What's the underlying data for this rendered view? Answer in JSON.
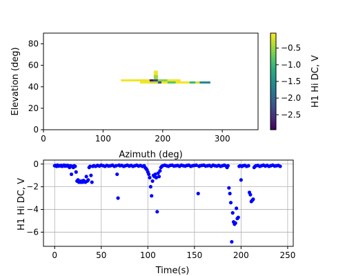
{
  "chart_data": [
    {
      "type": "heatmap",
      "xlabel": "Azimuth (deg)",
      "ylabel": "Elevation (deg)",
      "xlim": [
        0,
        360
      ],
      "ylim": [
        0,
        90
      ],
      "xticks": [
        0,
        100,
        200,
        300
      ],
      "yticks": [
        0,
        20,
        40,
        60,
        80
      ],
      "colorbar": {
        "label": "H1 Hi DC, V",
        "range": [
          -2.95,
          -0.05
        ],
        "ticks": [
          -0.5,
          -1.0,
          -1.5,
          -2.0,
          -2.5
        ],
        "tick_labels": [
          "−0.5",
          "−1.0",
          "−1.5",
          "−2.0",
          "−2.5"
        ],
        "colormap": "viridis"
      },
      "cells": [
        {
          "az": [
            130,
            160
          ],
          "el": [
            45,
            47
          ],
          "v": -0.1
        },
        {
          "az": [
            160,
            178
          ],
          "el": [
            45,
            47
          ],
          "v": -0.15
        },
        {
          "az": [
            178,
            185
          ],
          "el": [
            45,
            47
          ],
          "v": -2.75
        },
        {
          "az": [
            185,
            192
          ],
          "el": [
            45,
            47
          ],
          "v": -2.4
        },
        {
          "az": [
            192,
            208
          ],
          "el": [
            45,
            47
          ],
          "v": -0.6
        },
        {
          "az": [
            208,
            230
          ],
          "el": [
            45,
            47
          ],
          "v": -0.1
        },
        {
          "az": [
            185,
            192
          ],
          "el": [
            51,
            55
          ],
          "v": -0.1
        },
        {
          "az": [
            185,
            192
          ],
          "el": [
            47,
            51
          ],
          "v": -0.5
        },
        {
          "az": [
            162,
            178
          ],
          "el": [
            43,
            45
          ],
          "v": -0.1
        },
        {
          "az": [
            178,
            192
          ],
          "el": [
            43,
            45
          ],
          "v": -0.3
        },
        {
          "az": [
            192,
            198
          ],
          "el": [
            43,
            45
          ],
          "v": -2.2
        },
        {
          "az": [
            198,
            208
          ],
          "el": [
            43,
            45
          ],
          "v": -0.1
        },
        {
          "az": [
            208,
            222
          ],
          "el": [
            43,
            45
          ],
          "v": -0.8
        },
        {
          "az": [
            222,
            245
          ],
          "el": [
            43,
            45
          ],
          "v": -0.1
        },
        {
          "az": [
            245,
            255
          ],
          "el": [
            43,
            45
          ],
          "v": -1.0
        },
        {
          "az": [
            255,
            262
          ],
          "el": [
            43,
            45
          ],
          "v": -0.2
        },
        {
          "az": [
            262,
            280
          ],
          "el": [
            43,
            45
          ],
          "v": -1.6
        }
      ]
    },
    {
      "type": "scatter",
      "xlabel": "Time(s)",
      "ylabel": "H1 Hi DC, V",
      "xlim": [
        -12,
        256
      ],
      "ylim": [
        -7.25,
        0.35
      ],
      "xticks": [
        0,
        50,
        100,
        150,
        200,
        250
      ],
      "yticks": [
        0,
        -2,
        -4,
        -6
      ],
      "ytick_labels": [
        "0",
        "−2",
        "−4",
        "−6"
      ],
      "grid": true,
      "color": "#0000ff",
      "points": [
        [
          0,
          -0.15
        ],
        [
          1,
          -0.12
        ],
        [
          2,
          -0.2
        ],
        [
          3,
          -0.1
        ],
        [
          4,
          -0.18
        ],
        [
          5,
          -0.14
        ],
        [
          6,
          -0.16
        ],
        [
          7,
          -0.12
        ],
        [
          8,
          -0.2
        ],
        [
          9,
          -0.15
        ],
        [
          10,
          -0.1
        ],
        [
          11,
          -0.18
        ],
        [
          12,
          -0.13
        ],
        [
          13,
          -0.17
        ],
        [
          14,
          -0.12
        ],
        [
          15,
          -0.2
        ],
        [
          16,
          -0.3
        ],
        [
          17,
          -0.15
        ],
        [
          18,
          -0.9
        ],
        [
          19,
          -0.2
        ],
        [
          20,
          -0.3
        ],
        [
          21,
          -0.15
        ],
        [
          22,
          -0.2
        ],
        [
          23,
          -0.7
        ],
        [
          24,
          -1.5
        ],
        [
          25,
          -1.4
        ],
        [
          26,
          -1.6
        ],
        [
          27,
          -1.5
        ],
        [
          28,
          -1.6
        ],
        [
          29,
          -1.5
        ],
        [
          30,
          -1.6
        ],
        [
          31,
          -1.45
        ],
        [
          32,
          -1.55
        ],
        [
          33,
          -1.6
        ],
        [
          34,
          -1.1
        ],
        [
          35,
          -1.5
        ],
        [
          36,
          -1.4
        ],
        [
          37,
          -0.3
        ],
        [
          38,
          -0.2
        ],
        [
          39,
          -1.0
        ],
        [
          40,
          -1.6
        ],
        [
          41,
          -0.2
        ],
        [
          42,
          -0.15
        ],
        [
          44,
          -0.2
        ],
        [
          46,
          -0.12
        ],
        [
          48,
          -0.18
        ],
        [
          50,
          -0.1
        ],
        [
          52,
          -0.15
        ],
        [
          54,
          -0.2
        ],
        [
          56,
          -0.12
        ],
        [
          58,
          -0.18
        ],
        [
          60,
          -0.15
        ],
        [
          62,
          -0.1
        ],
        [
          64,
          -0.2
        ],
        [
          66,
          -0.15
        ],
        [
          67,
          -0.9
        ],
        [
          68,
          -3.0
        ],
        [
          69,
          -0.1
        ],
        [
          70,
          -0.15
        ],
        [
          72,
          -0.12
        ],
        [
          74,
          -0.2
        ],
        [
          76,
          -0.15
        ],
        [
          78,
          -0.1
        ],
        [
          80,
          -0.18
        ],
        [
          82,
          -0.12
        ],
        [
          84,
          -0.2
        ],
        [
          86,
          -0.15
        ],
        [
          88,
          -0.1
        ],
        [
          90,
          -0.18
        ],
        [
          92,
          -0.13
        ],
        [
          94,
          -0.2
        ],
        [
          96,
          -0.15
        ],
        [
          97,
          -0.3
        ],
        [
          98,
          -0.4
        ],
        [
          99,
          -0.5
        ],
        [
          100,
          -0.7
        ],
        [
          101,
          -0.9
        ],
        [
          102,
          -1.2
        ],
        [
          103,
          -2.0
        ],
        [
          104,
          -2.8
        ],
        [
          105,
          -1.5
        ],
        [
          106,
          -1.0
        ],
        [
          107,
          -1.1
        ],
        [
          108,
          -0.9
        ],
        [
          109,
          -1.2
        ],
        [
          110,
          -4.2
        ],
        [
          111,
          -0.8
        ],
        [
          112,
          -1.1
        ],
        [
          113,
          -0.6
        ],
        [
          114,
          -0.3
        ],
        [
          115,
          -0.2
        ],
        [
          116,
          -0.15
        ],
        [
          118,
          -0.1
        ],
        [
          120,
          -0.15
        ],
        [
          122,
          -0.2
        ],
        [
          124,
          -0.12
        ],
        [
          126,
          -0.1
        ],
        [
          128,
          -0.18
        ],
        [
          130,
          -0.15
        ],
        [
          132,
          -0.12
        ],
        [
          134,
          -0.2
        ],
        [
          136,
          -0.1
        ],
        [
          138,
          -0.15
        ],
        [
          140,
          -0.18
        ],
        [
          142,
          -0.12
        ],
        [
          144,
          -0.1
        ],
        [
          146,
          -0.2
        ],
        [
          148,
          -0.15
        ],
        [
          150,
          -0.12
        ],
        [
          152,
          -0.1
        ],
        [
          154,
          -2.6
        ],
        [
          155,
          -0.2
        ],
        [
          156,
          -0.15
        ],
        [
          158,
          -0.12
        ],
        [
          160,
          -0.1
        ],
        [
          162,
          -0.18
        ],
        [
          164,
          -0.15
        ],
        [
          166,
          -0.12
        ],
        [
          168,
          -0.2
        ],
        [
          170,
          -0.1
        ],
        [
          172,
          -0.15
        ],
        [
          174,
          -0.18
        ],
        [
          176,
          -0.12
        ],
        [
          178,
          -0.2
        ],
        [
          180,
          -0.15
        ],
        [
          182,
          -0.1
        ],
        [
          184,
          -0.18
        ],
        [
          185,
          -0.3
        ],
        [
          186,
          -0.15
        ],
        [
          187,
          -2.1
        ],
        [
          188,
          -2.6
        ],
        [
          189,
          -3.4
        ],
        [
          190,
          -6.85
        ],
        [
          191,
          -4.3
        ],
        [
          192,
          -5.1
        ],
        [
          193,
          -5.3
        ],
        [
          194,
          -5.2
        ],
        [
          195,
          -3.9
        ],
        [
          196,
          -4.8
        ],
        [
          197,
          -4.7
        ],
        [
          198,
          -0.2
        ],
        [
          199,
          -0.15
        ],
        [
          200,
          -1.4
        ],
        [
          201,
          -0.2
        ],
        [
          202,
          -0.15
        ],
        [
          204,
          -0.12
        ],
        [
          206,
          -0.2
        ],
        [
          208,
          -0.15
        ],
        [
          209,
          -2.5
        ],
        [
          210,
          -2.7
        ],
        [
          211,
          -3.3
        ],
        [
          212,
          -3.2
        ],
        [
          213,
          -3.1
        ],
        [
          214,
          -0.3
        ],
        [
          215,
          -0.2
        ],
        [
          216,
          -0.15
        ],
        [
          218,
          -0.12
        ],
        [
          220,
          -0.2
        ],
        [
          222,
          -0.15
        ],
        [
          224,
          -0.1
        ],
        [
          226,
          -0.18
        ],
        [
          228,
          -0.12
        ],
        [
          230,
          -0.2
        ],
        [
          232,
          -0.15
        ],
        [
          234,
          -0.1
        ],
        [
          236,
          -0.18
        ],
        [
          238,
          -0.15
        ],
        [
          240,
          -0.12
        ],
        [
          242,
          -0.2
        ]
      ]
    }
  ]
}
